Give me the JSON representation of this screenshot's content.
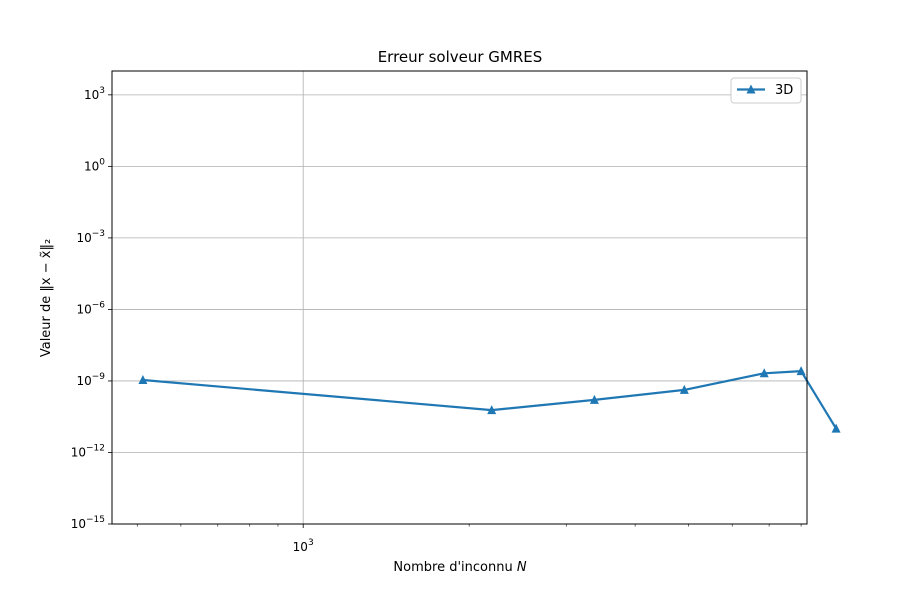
{
  "chart_data": {
    "type": "line",
    "title": "Erreur solveur GMRES",
    "xlabel": "Nombre d'inconnu N",
    "ylabel": "Valeur de ‖x − x̃‖₂",
    "xscale": "log",
    "yscale": "log",
    "xlim": [
      450,
      8200
    ],
    "ylim": [
      1e-15,
      10000.0
    ],
    "grid": true,
    "legend_position": "top-right",
    "xticks": [
      {
        "value": 1000,
        "base": "10",
        "exp": "3"
      }
    ],
    "yticks": [
      {
        "value": 1e-15,
        "base": "10",
        "exp": "−15"
      },
      {
        "value": 1e-12,
        "base": "10",
        "exp": "−12"
      },
      {
        "value": 1e-09,
        "base": "10",
        "exp": "−9"
      },
      {
        "value": 1e-06,
        "base": "10",
        "exp": "−6"
      },
      {
        "value": 0.001,
        "base": "10",
        "exp": "−3"
      },
      {
        "value": 1,
        "base": "10",
        "exp": "0"
      },
      {
        "value": 1000,
        "base": "10",
        "exp": "3"
      }
    ],
    "series": [
      {
        "name": "3D",
        "color": "#1f77b4",
        "marker": "triangle",
        "x": [
          512,
          2197,
          3375,
          4913,
          6859,
          8000,
          9261
        ],
        "y": [
          1.1e-09,
          6e-11,
          1.6e-10,
          4.2e-10,
          2.1e-09,
          2.6e-09,
          1e-11
        ]
      }
    ]
  }
}
